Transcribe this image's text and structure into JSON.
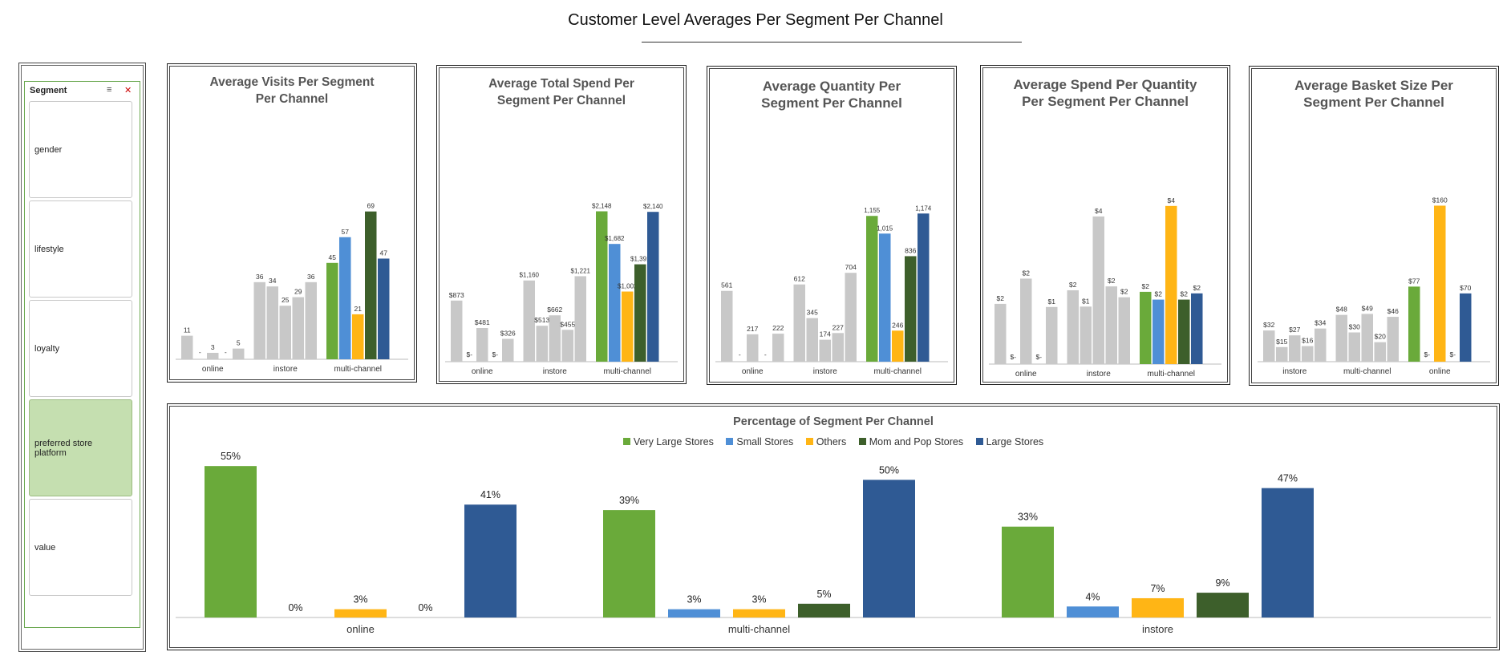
{
  "page_title": "Customer Level Averages Per Segment Per Channel",
  "slicer": {
    "title": "Segment",
    "items": [
      "gender",
      "lifestyle",
      "loyalty",
      "preferred store platform",
      "value"
    ],
    "selected_index": 3
  },
  "colors": {
    "Very Large Stores": "#6aaa3a",
    "Small Stores": "#4f8fd6",
    "Others": "#ffb515",
    "Mom and Pop Stores": "#3d5f2b",
    "Large Stores": "#2f5a94",
    "grey": "#c8c8c8"
  },
  "chart_data": [
    {
      "type": "bar",
      "title": "Average Visits Per Segment Per Channel",
      "groups": [
        "online",
        "instore",
        "multi-channel"
      ],
      "bars": [
        {
          "group": 0,
          "value": 11,
          "label": "11"
        },
        {
          "group": 0,
          "value": 0,
          "label": "-"
        },
        {
          "group": 0,
          "value": 3,
          "label": "3"
        },
        {
          "group": 0,
          "value": 0,
          "label": "-"
        },
        {
          "group": 0,
          "value": 5,
          "label": "5"
        },
        {
          "group": 1,
          "value": 36,
          "label": "36"
        },
        {
          "group": 1,
          "value": 34,
          "label": "34"
        },
        {
          "group": 1,
          "value": 25,
          "label": "25"
        },
        {
          "group": 1,
          "value": 29,
          "label": "29"
        },
        {
          "group": 1,
          "value": 36,
          "label": "36"
        },
        {
          "group": 2,
          "value": 45,
          "label": "45",
          "series": "Very Large Stores"
        },
        {
          "group": 2,
          "value": 57,
          "label": "57",
          "series": "Small Stores"
        },
        {
          "group": 2,
          "value": 21,
          "label": "21",
          "series": "Others"
        },
        {
          "group": 2,
          "value": 69,
          "label": "69",
          "series": "Mom and Pop Stores"
        },
        {
          "group": 2,
          "value": 47,
          "label": "47",
          "series": "Large Stores"
        }
      ],
      "ylim": [
        0,
        76
      ]
    },
    {
      "type": "bar",
      "title": "Average Total Spend Per Segment Per Channel",
      "groups": [
        "online",
        "instore",
        "multi-channel"
      ],
      "bars": [
        {
          "group": 0,
          "value": 873,
          "label": "$873"
        },
        {
          "group": 0,
          "value": 0,
          "label": "$-"
        },
        {
          "group": 0,
          "value": 481,
          "label": "$481"
        },
        {
          "group": 0,
          "value": 0,
          "label": "$-"
        },
        {
          "group": 0,
          "value": 326,
          "label": "$326"
        },
        {
          "group": 1,
          "value": 1160,
          "label": "$1,160"
        },
        {
          "group": 1,
          "value": 513,
          "label": "$513"
        },
        {
          "group": 1,
          "value": 662,
          "label": "$662"
        },
        {
          "group": 1,
          "value": 455,
          "label": "$455"
        },
        {
          "group": 1,
          "value": 1221,
          "label": "$1,221"
        },
        {
          "group": 2,
          "value": 2148,
          "label": "$2,148",
          "series": "Very Large Stores"
        },
        {
          "group": 2,
          "value": 1682,
          "label": "$1,682",
          "series": "Small Stores"
        },
        {
          "group": 2,
          "value": 1002,
          "label": "$1,002",
          "series": "Others"
        },
        {
          "group": 2,
          "value": 1391,
          "label": "$1,391",
          "series": "Mom and Pop Stores"
        },
        {
          "group": 2,
          "value": 2140,
          "label": "$2,140",
          "series": "Large Stores"
        }
      ],
      "ylim": [
        0,
        2360
      ]
    },
    {
      "type": "bar",
      "title": "Average Quantity Per Segment Per Channel",
      "groups": [
        "online",
        "instore",
        "multi-channel"
      ],
      "bars": [
        {
          "group": 0,
          "value": 561,
          "label": "561"
        },
        {
          "group": 0,
          "value": 0,
          "label": "-"
        },
        {
          "group": 0,
          "value": 217,
          "label": "217"
        },
        {
          "group": 0,
          "value": 0,
          "label": "-"
        },
        {
          "group": 0,
          "value": 222,
          "label": "222"
        },
        {
          "group": 1,
          "value": 612,
          "label": "612"
        },
        {
          "group": 1,
          "value": 345,
          "label": "345"
        },
        {
          "group": 1,
          "value": 174,
          "label": "174"
        },
        {
          "group": 1,
          "value": 227,
          "label": "227"
        },
        {
          "group": 1,
          "value": 704,
          "label": "704"
        },
        {
          "group": 2,
          "value": 1155,
          "label": "1,155",
          "series": "Very Large Stores"
        },
        {
          "group": 2,
          "value": 1015,
          "label": "1,015",
          "series": "Small Stores"
        },
        {
          "group": 2,
          "value": 246,
          "label": "246",
          "series": "Others"
        },
        {
          "group": 2,
          "value": 836,
          "label": "836",
          "series": "Mom and Pop Stores"
        },
        {
          "group": 2,
          "value": 1174,
          "label": "1,174",
          "series": "Large Stores"
        }
      ],
      "ylim": [
        0,
        1290
      ]
    },
    {
      "type": "bar",
      "title": "Average Spend Per Quantity Per Segment Per Channel",
      "groups": [
        "online",
        "instore",
        "multi-channel"
      ],
      "bars": [
        {
          "group": 0,
          "value": 1.55,
          "label": "$2"
        },
        {
          "group": 0,
          "value": 0,
          "label": "$-"
        },
        {
          "group": 0,
          "value": 2.2,
          "label": "$2"
        },
        {
          "group": 0,
          "value": 0,
          "label": "$-"
        },
        {
          "group": 0,
          "value": 1.47,
          "label": "$1"
        },
        {
          "group": 1,
          "value": 1.9,
          "label": "$2"
        },
        {
          "group": 1,
          "value": 1.48,
          "label": "$1"
        },
        {
          "group": 1,
          "value": 3.8,
          "label": "$4"
        },
        {
          "group": 1,
          "value": 2.0,
          "label": "$2"
        },
        {
          "group": 1,
          "value": 1.72,
          "label": "$2"
        },
        {
          "group": 2,
          "value": 1.86,
          "label": "$2",
          "series": "Very Large Stores"
        },
        {
          "group": 2,
          "value": 1.66,
          "label": "$2",
          "series": "Small Stores"
        },
        {
          "group": 2,
          "value": 4.07,
          "label": "$4",
          "series": "Others"
        },
        {
          "group": 2,
          "value": 1.66,
          "label": "$2",
          "series": "Mom and Pop Stores"
        },
        {
          "group": 2,
          "value": 1.82,
          "label": "$2",
          "series": "Large Stores"
        }
      ],
      "ylim": [
        0,
        4.5
      ]
    },
    {
      "type": "bar",
      "title": "Average Basket Size Per Segment Per Channel",
      "groups": [
        "instore",
        "multi-channel",
        "online"
      ],
      "bars": [
        {
          "group": 0,
          "value": 32,
          "label": "$32"
        },
        {
          "group": 0,
          "value": 15,
          "label": "$15"
        },
        {
          "group": 0,
          "value": 27,
          "label": "$27"
        },
        {
          "group": 0,
          "value": 16,
          "label": "$16"
        },
        {
          "group": 0,
          "value": 34,
          "label": "$34"
        },
        {
          "group": 1,
          "value": 48,
          "label": "$48"
        },
        {
          "group": 1,
          "value": 30,
          "label": "$30"
        },
        {
          "group": 1,
          "value": 49,
          "label": "$49"
        },
        {
          "group": 1,
          "value": 20,
          "label": "$20"
        },
        {
          "group": 1,
          "value": 46,
          "label": "$46"
        },
        {
          "group": 2,
          "value": 77,
          "label": "$77",
          "series": "Very Large Stores"
        },
        {
          "group": 2,
          "value": 0,
          "label": "$-",
          "series": "Small Stores"
        },
        {
          "group": 2,
          "value": 160,
          "label": "$160",
          "series": "Others"
        },
        {
          "group": 2,
          "value": 0,
          "label": "$-",
          "series": "Mom and Pop Stores"
        },
        {
          "group": 2,
          "value": 70,
          "label": "$70",
          "series": "Large Stores"
        }
      ],
      "ylim": [
        0,
        176
      ]
    },
    {
      "type": "bar",
      "title": "Percentage of Segment Per Channel",
      "categories": [
        "online",
        "multi-channel",
        "instore"
      ],
      "legend": "top",
      "ylim": [
        0,
        60
      ],
      "series": [
        {
          "name": "Very Large Stores",
          "values": [
            55,
            39,
            33
          ],
          "labels": [
            "55%",
            "39%",
            "33%"
          ]
        },
        {
          "name": "Small Stores",
          "values": [
            0,
            3,
            4
          ],
          "labels": [
            "0%",
            "3%",
            "4%"
          ]
        },
        {
          "name": "Others",
          "values": [
            3,
            3,
            7
          ],
          "labels": [
            "3%",
            "3%",
            "7%"
          ]
        },
        {
          "name": "Mom and Pop Stores",
          "values": [
            0,
            5,
            9
          ],
          "labels": [
            "0%",
            "5%",
            "9%"
          ]
        },
        {
          "name": "Large Stores",
          "values": [
            41,
            50,
            47
          ],
          "labels": [
            "41%",
            "50%",
            "47%"
          ]
        }
      ]
    }
  ]
}
